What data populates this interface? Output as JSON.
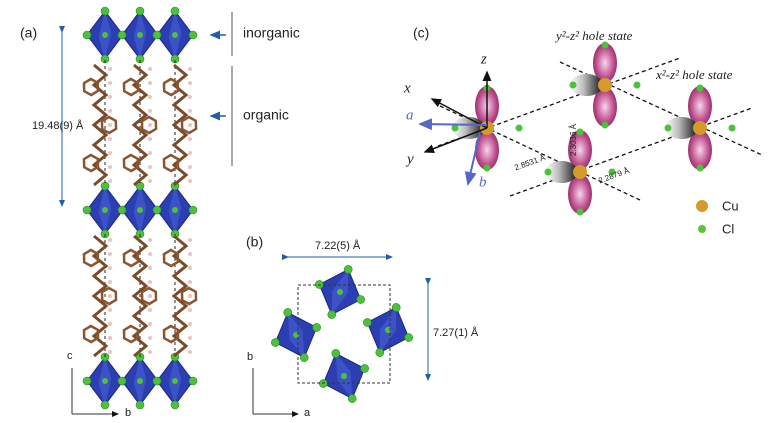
{
  "panel_a": {
    "label": "(a)",
    "inorganic": "inorganic",
    "organic": "organic",
    "spacing": "19.48(9) Å",
    "axis_vertical": "c",
    "axis_horizontal": "b"
  },
  "panel_b": {
    "label": "(b)",
    "width": "7.22(5) Å",
    "height": "7.27(1) Å",
    "axis_vertical": "b",
    "axis_horizontal": "a"
  },
  "panel_c": {
    "label": "(c)",
    "state_y": "y²-z² hole state",
    "state_x": "x²-z² hole state",
    "axes": {
      "x": "x",
      "z": "z",
      "y": "y",
      "a": "a",
      "b": "b"
    },
    "distances": [
      "2.3036 Å",
      "2.8531 Å",
      "2.2879 Å"
    ],
    "legend": [
      "Cu",
      "Cl"
    ]
  }
}
